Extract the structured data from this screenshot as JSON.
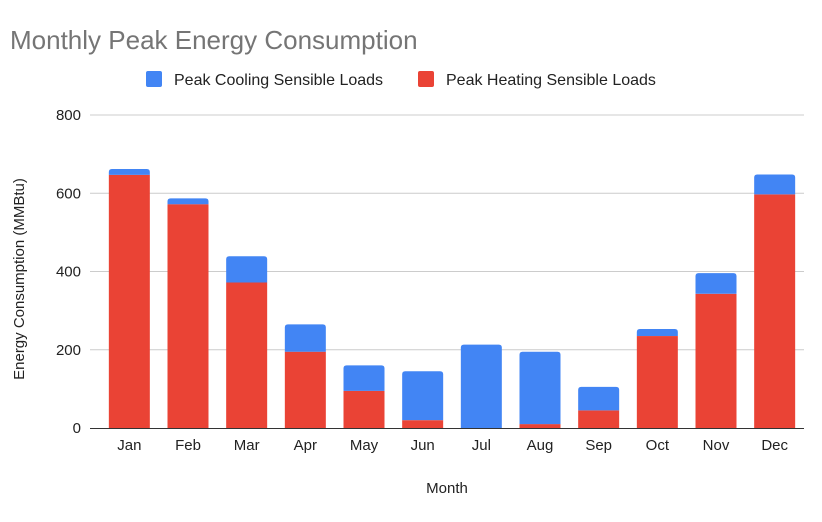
{
  "chart_data": {
    "type": "bar",
    "stacked": true,
    "title": "Monthly Peak Energy Consumption",
    "xlabel": "Month",
    "ylabel": "Energy Consumption (MMBtu)",
    "ylim": [
      0,
      800
    ],
    "yticks": [
      0,
      200,
      400,
      600,
      800
    ],
    "grid": true,
    "legend_position": "top",
    "categories": [
      "Jan",
      "Feb",
      "Mar",
      "Apr",
      "May",
      "Jun",
      "Jul",
      "Aug",
      "Sep",
      "Oct",
      "Nov",
      "Dec"
    ],
    "series": [
      {
        "name": "Peak Heating Sensible Loads",
        "color": "#ea4335",
        "values": [
          647,
          572,
          372,
          195,
          95,
          20,
          0,
          10,
          45,
          235,
          343,
          597
        ]
      },
      {
        "name": "Peak Cooling Sensible Loads",
        "color": "#4285f4",
        "values": [
          15,
          15,
          67,
          70,
          65,
          125,
          213,
          185,
          60,
          18,
          53,
          51
        ]
      }
    ]
  }
}
